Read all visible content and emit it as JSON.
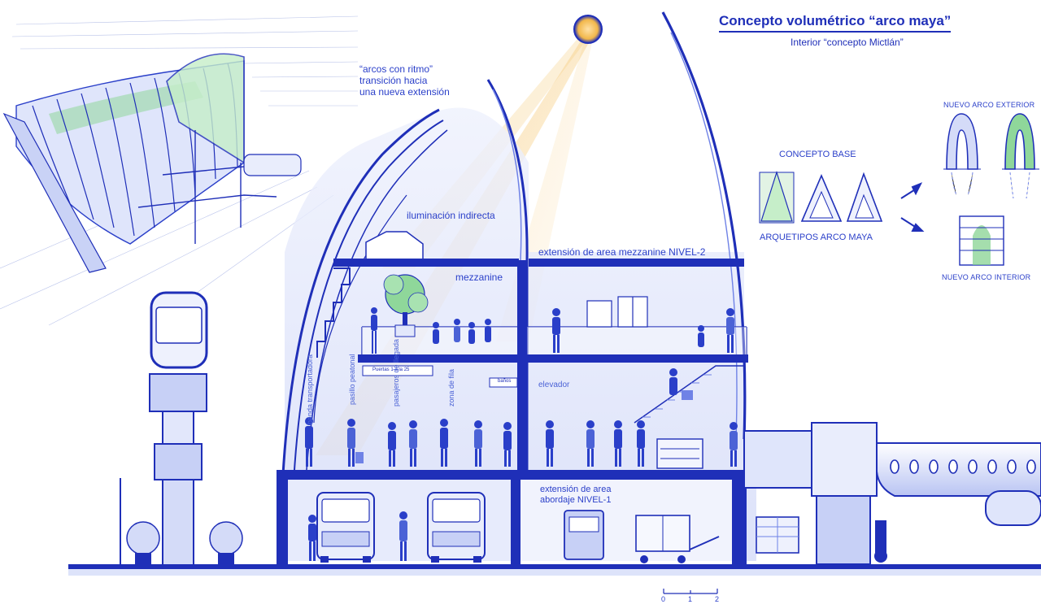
{
  "header": {
    "title": "Concepto volumétrico “arco maya”",
    "subtitle": "Interior “concepto Mictlán”"
  },
  "annotations": {
    "arcos": [
      "“arcos con ritmo”",
      "transición hacia",
      "una nueva extensión"
    ],
    "iluminacion": "iluminación indirecta",
    "mezzanine": "mezzanine",
    "extension_n2": "extensión de area mezzanine NIVEL-2",
    "elevador": "elevador",
    "extension_n1": [
      "extensión de area",
      "abordaje NIVEL-1"
    ],
    "sign_small": "Puertas 1 a la 25",
    "sign_bano": "baños",
    "vertical_zones": [
      "banda transportadora",
      "pasillo peatonal",
      "pasajeros de llegada",
      "zona de fila"
    ]
  },
  "concept_panel": {
    "concepto_base": "CONCEPTO BASE",
    "arquetipos": "ARQUETIPOS ARCO MAYA",
    "nuevo_exterior": "NUEVO ARCO EXTERIOR",
    "nuevo_interior": "NUEVO ARCO INTERIOR"
  },
  "scale_bar": {
    "ticks": [
      "0",
      "1",
      "2"
    ]
  },
  "colors": {
    "ink": "#1f2fb8",
    "ink_light": "#6f82e6",
    "fill_light": "#e6eafc",
    "fill_mid": "#c7d0f6",
    "green": "#7fd08a",
    "sun": "#f2b74a",
    "beam": "#f5c66e"
  }
}
